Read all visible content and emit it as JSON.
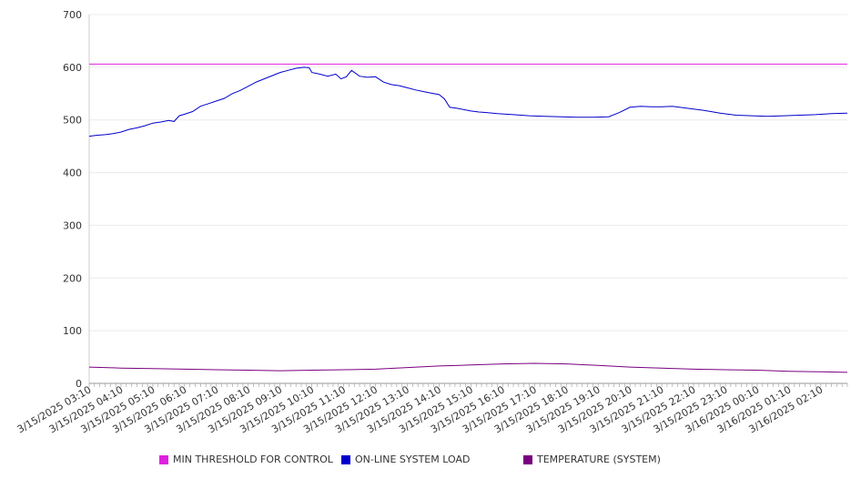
{
  "chart_data": {
    "type": "line",
    "title": "",
    "xlabel": "",
    "ylabel": "",
    "ylim": [
      0,
      700
    ],
    "yticks": [
      0,
      100,
      200,
      300,
      400,
      500,
      600,
      700
    ],
    "grid": true,
    "legend_position": "bottom",
    "x_tick_labels": [
      "3/15/2025 03:10",
      "3/15/2025 04:10",
      "3/15/2025 05:10",
      "3/15/2025 06:10",
      "3/15/2025 07:10",
      "3/15/2025 08:10",
      "3/15/2025 09:10",
      "3/15/2025 10:10",
      "3/15/2025 11:10",
      "3/15/2025 12:10",
      "3/15/2025 13:10",
      "3/15/2025 14:10",
      "3/15/2025 15:10",
      "3/15/2025 16:10",
      "3/15/2025 17:10",
      "3/15/2025 18:10",
      "3/15/2025 19:10",
      "3/15/2025 20:10",
      "3/15/2025 21:10",
      "3/15/2025 22:10",
      "3/15/2025 23:10",
      "3/16/2025 00:10",
      "3/16/2025 01:10",
      "3/16/2025 02:10"
    ],
    "x_range": [
      "3/15/2025 03:10",
      "3/16/2025 03:00"
    ],
    "series": [
      {
        "name": "MIN THRESHOLD FOR CONTROL",
        "color": "#e020e0",
        "points": [
          [
            "3/15/2025 03:10",
            606
          ],
          [
            "3/16/2025 03:00",
            606
          ]
        ]
      },
      {
        "name": "ON-LINE SYSTEM LOAD",
        "color": "#0000cc",
        "points": [
          [
            "3/15/2025 03:10",
            469
          ],
          [
            "3/15/2025 03:25",
            471
          ],
          [
            "3/15/2025 03:40",
            472
          ],
          [
            "3/15/2025 03:55",
            474
          ],
          [
            "3/15/2025 04:10",
            477
          ],
          [
            "3/15/2025 04:25",
            482
          ],
          [
            "3/15/2025 04:40",
            485
          ],
          [
            "3/15/2025 04:55",
            489
          ],
          [
            "3/15/2025 05:10",
            494
          ],
          [
            "3/15/2025 05:25",
            496
          ],
          [
            "3/15/2025 05:40",
            499
          ],
          [
            "3/15/2025 05:50",
            497
          ],
          [
            "3/15/2025 06:00",
            508
          ],
          [
            "3/15/2025 06:10",
            511
          ],
          [
            "3/15/2025 06:25",
            516
          ],
          [
            "3/15/2025 06:40",
            526
          ],
          [
            "3/15/2025 06:55",
            531
          ],
          [
            "3/15/2025 07:10",
            536
          ],
          [
            "3/15/2025 07:25",
            541
          ],
          [
            "3/15/2025 07:40",
            550
          ],
          [
            "3/15/2025 07:55",
            556
          ],
          [
            "3/15/2025 08:10",
            564
          ],
          [
            "3/15/2025 08:25",
            572
          ],
          [
            "3/15/2025 08:40",
            578
          ],
          [
            "3/15/2025 08:55",
            584
          ],
          [
            "3/15/2025 09:10",
            590
          ],
          [
            "3/15/2025 09:25",
            594
          ],
          [
            "3/15/2025 09:40",
            598
          ],
          [
            "3/15/2025 09:55",
            600
          ],
          [
            "3/15/2025 10:05",
            599
          ],
          [
            "3/15/2025 10:10",
            590
          ],
          [
            "3/15/2025 10:25",
            587
          ],
          [
            "3/15/2025 10:40",
            583
          ],
          [
            "3/15/2025 10:55",
            587
          ],
          [
            "3/15/2025 11:05",
            578
          ],
          [
            "3/15/2025 11:15",
            582
          ],
          [
            "3/15/2025 11:25",
            594
          ],
          [
            "3/15/2025 11:40",
            583
          ],
          [
            "3/15/2025 11:55",
            581
          ],
          [
            "3/15/2025 12:10",
            582
          ],
          [
            "3/15/2025 12:25",
            572
          ],
          [
            "3/15/2025 12:40",
            567
          ],
          [
            "3/15/2025 12:55",
            565
          ],
          [
            "3/15/2025 13:10",
            561
          ],
          [
            "3/15/2025 13:25",
            557
          ],
          [
            "3/15/2025 13:40",
            554
          ],
          [
            "3/15/2025 13:55",
            551
          ],
          [
            "3/15/2025 14:10",
            548
          ],
          [
            "3/15/2025 14:20",
            540
          ],
          [
            "3/15/2025 14:30",
            524
          ],
          [
            "3/15/2025 14:45",
            522
          ],
          [
            "3/15/2025 15:00",
            519
          ],
          [
            "3/15/2025 15:10",
            517
          ],
          [
            "3/15/2025 15:25",
            515
          ],
          [
            "3/15/2025 15:40",
            514
          ],
          [
            "3/15/2025 16:00",
            512
          ],
          [
            "3/15/2025 16:30",
            510
          ],
          [
            "3/15/2025 17:00",
            508
          ],
          [
            "3/15/2025 17:30",
            507
          ],
          [
            "3/15/2025 18:00",
            506
          ],
          [
            "3/15/2025 18:30",
            505
          ],
          [
            "3/15/2025 19:00",
            505
          ],
          [
            "3/15/2025 19:30",
            506
          ],
          [
            "3/15/2025 19:50",
            514
          ],
          [
            "3/15/2025 20:10",
            524
          ],
          [
            "3/15/2025 20:30",
            526
          ],
          [
            "3/15/2025 20:50",
            525
          ],
          [
            "3/15/2025 21:10",
            525
          ],
          [
            "3/15/2025 21:30",
            526
          ],
          [
            "3/15/2025 22:00",
            522
          ],
          [
            "3/15/2025 22:30",
            518
          ],
          [
            "3/15/2025 23:00",
            513
          ],
          [
            "3/15/2025 23:30",
            509
          ],
          [
            "3/16/2025 00:00",
            508
          ],
          [
            "3/16/2025 00:30",
            507
          ],
          [
            "3/16/2025 01:00",
            508
          ],
          [
            "3/16/2025 01:30",
            509
          ],
          [
            "3/16/2025 02:00",
            510
          ],
          [
            "3/16/2025 02:30",
            512
          ],
          [
            "3/16/2025 03:00",
            513
          ]
        ]
      },
      {
        "name": "TEMPERATURE (SYSTEM)",
        "color": "#7a0080",
        "points": [
          [
            "3/15/2025 03:10",
            31
          ],
          [
            "3/15/2025 04:10",
            29
          ],
          [
            "3/15/2025 05:10",
            28
          ],
          [
            "3/15/2025 06:10",
            27
          ],
          [
            "3/15/2025 07:10",
            26
          ],
          [
            "3/15/2025 08:10",
            25
          ],
          [
            "3/15/2025 09:10",
            24
          ],
          [
            "3/15/2025 10:10",
            25
          ],
          [
            "3/15/2025 11:10",
            26
          ],
          [
            "3/15/2025 12:10",
            27
          ],
          [
            "3/15/2025 13:10",
            30
          ],
          [
            "3/15/2025 14:10",
            33
          ],
          [
            "3/15/2025 15:10",
            35
          ],
          [
            "3/15/2025 16:10",
            37
          ],
          [
            "3/15/2025 17:10",
            38
          ],
          [
            "3/15/2025 18:10",
            37
          ],
          [
            "3/15/2025 19:10",
            34
          ],
          [
            "3/15/2025 20:10",
            31
          ],
          [
            "3/15/2025 21:10",
            29
          ],
          [
            "3/15/2025 22:10",
            27
          ],
          [
            "3/15/2025 23:10",
            26
          ],
          [
            "3/16/2025 00:10",
            25
          ],
          [
            "3/16/2025 01:10",
            23
          ],
          [
            "3/16/2025 02:10",
            22
          ],
          [
            "3/16/2025 03:00",
            21
          ]
        ]
      }
    ]
  }
}
